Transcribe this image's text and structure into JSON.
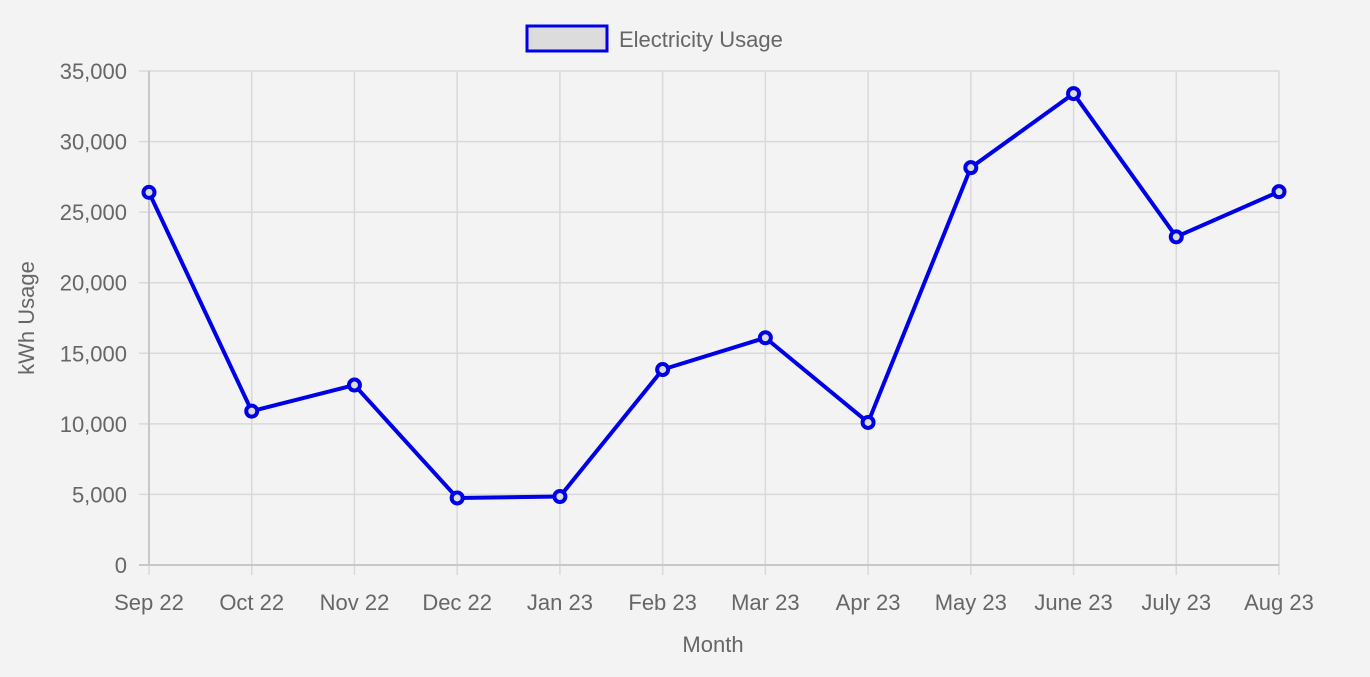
{
  "chart_data": {
    "type": "line",
    "categories": [
      "Sep 22",
      "Oct 22",
      "Nov 22",
      "Dec 22",
      "Jan 23",
      "Feb 23",
      "Mar 23",
      "Apr 23",
      "May 23",
      "June 23",
      "July 23",
      "Aug 23"
    ],
    "series": [
      {
        "name": "Electricity Usage",
        "values": [
          26400,
          10900,
          12750,
          4750,
          4850,
          13850,
          16100,
          10100,
          28150,
          33400,
          23250,
          26450
        ],
        "color": "#0000e6"
      }
    ],
    "xlabel": "Month",
    "ylabel": "kWh Usage",
    "ylim": [
      0,
      35000
    ],
    "yticks": [
      0,
      5000,
      10000,
      15000,
      20000,
      25000,
      30000,
      35000
    ],
    "ytick_labels": [
      "0",
      "5,000",
      "10,000",
      "15,000",
      "20,000",
      "25,000",
      "30,000",
      "35,000"
    ],
    "grid": true,
    "legend_position": "top-center",
    "legend_fill": "#dcdcdc",
    "grid_color": "#d9d9d9",
    "background": "#f3f3f3"
  }
}
